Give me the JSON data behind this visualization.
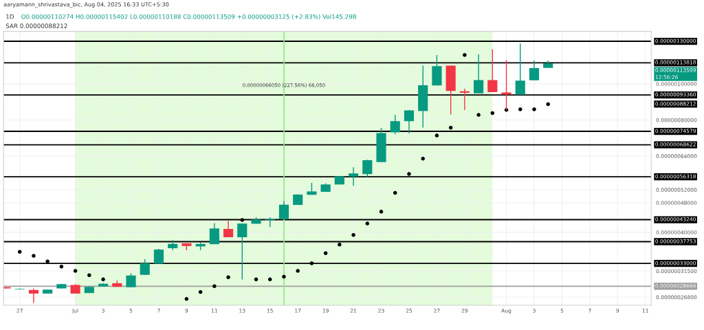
{
  "chart_data": {
    "type": "candlestick",
    "title": "1D",
    "subtitle": "O0.00000110274 H0.00000115402 L0.00000110188 C0.00000113509 +0.00000003125 (+2.83%) Vol145.29B",
    "x": [
      "2025-06-26",
      "2025-06-27",
      "2025-06-28",
      "2025-06-29",
      "2025-06-30",
      "2025-07-01",
      "2025-07-02",
      "2025-07-03",
      "2025-07-04",
      "2025-07-05",
      "2025-07-06",
      "2025-07-07",
      "2025-07-08",
      "2025-07-09",
      "2025-07-10",
      "2025-07-11",
      "2025-07-12",
      "2025-07-13",
      "2025-07-14",
      "2025-07-15",
      "2025-07-16",
      "2025-07-17",
      "2025-07-18",
      "2025-07-19",
      "2025-07-20",
      "2025-07-21",
      "2025-07-22",
      "2025-07-23",
      "2025-07-24",
      "2025-07-25",
      "2025-07-26",
      "2025-07-27",
      "2025-07-28",
      "2025-07-29",
      "2025-07-30",
      "2025-07-31",
      "2025-08-01",
      "2025-08-02",
      "2025-08-03",
      "2025-08-04"
    ],
    "ohlc": [
      [
        2.849e-07,
        2.853e-07,
        2.829e-07,
        2.829e-07
      ],
      [
        2.814e-07,
        2.83e-07,
        2.81e-07,
        2.822e-07
      ],
      [
        2.802e-07,
        2.829e-07,
        2.586e-07,
        2.741e-07
      ],
      [
        2.741e-07,
        2.808e-07,
        2.741e-07,
        2.808e-07
      ],
      [
        2.829e-07,
        2.913e-07,
        2.829e-07,
        2.905e-07
      ],
      [
        2.889e-07,
        2.905e-07,
        2.741e-07,
        2.741e-07
      ],
      [
        2.748e-07,
        2.869e-07,
        2.748e-07,
        2.857e-07
      ],
      [
        2.861e-07,
        2.925e-07,
        2.861e-07,
        2.913e-07
      ],
      [
        2.921e-07,
        2.97e-07,
        2.857e-07,
        2.857e-07
      ],
      [
        2.849e-07,
        3.105e-07,
        2.849e-07,
        3.062e-07
      ],
      [
        3.075e-07,
        3.388e-07,
        3.075e-07,
        3.304e-07
      ],
      [
        3.295e-07,
        3.61e-07,
        3.295e-07,
        3.596e-07
      ],
      [
        3.626e-07,
        3.811e-07,
        3.581e-07,
        3.722e-07
      ],
      [
        3.738e-07,
        3.738e-07,
        3.581e-07,
        3.676e-07
      ],
      [
        3.666e-07,
        3.758e-07,
        3.581e-07,
        3.722e-07
      ],
      [
        3.717e-07,
        4.227e-07,
        3.717e-07,
        4.096e-07
      ],
      [
        4.084e-07,
        4.286e-07,
        3.88e-07,
        3.88e-07
      ],
      [
        3.88e-07,
        4.222e-07,
        2.991e-07,
        4.222e-07
      ],
      [
        4.217e-07,
        4.389e-07,
        4.217e-07,
        4.328e-07
      ],
      [
        4.316e-07,
        4.389e-07,
        4.13e-07,
        4.346e-07
      ],
      [
        4.334e-07,
        4.843e-07,
        4.334e-07,
        4.742e-07
      ],
      [
        4.736e-07,
        5.06e-07,
        4.736e-07,
        5.048e-07
      ],
      [
        5.041e-07,
        5.425e-07,
        5.041e-07,
        5.147e-07
      ],
      [
        5.133e-07,
        5.41e-07,
        5.133e-07,
        5.373e-07
      ],
      [
        5.373e-07,
        5.66e-07,
        5.373e-07,
        5.648e-07
      ],
      [
        5.64e-07,
        5.978e-07,
        5.328e-07,
        5.75e-07
      ],
      [
        5.727e-07,
        6.26e-07,
        5.632e-07,
        6.24e-07
      ],
      [
        6.171e-07,
        7.616e-07,
        6.171e-07,
        7.378e-07
      ],
      [
        7.408e-07,
        8.254e-07,
        7.326e-07,
        7.94e-07
      ],
      [
        7.94e-07,
        8.5e-07,
        7.358e-07,
        8.486e-07
      ],
      [
        8.451e-07,
        1.118e-06,
        7.638e-07,
        9.908e-07
      ],
      [
        9.895e-07,
        1.1948e-06,
        9.895e-07,
        1.1148e-06
      ],
      [
        1.118e-06,
        1.118e-06,
        8.277e-07,
        9.573e-07
      ],
      [
        9.547e-07,
        9.705e-07,
        8.51e-07,
        9.455e-07
      ],
      [
        9.429e-07,
        1.1998e-06,
        9.429e-07,
        1.023e-06
      ],
      [
        1.023e-06,
        1.2369e-06,
        9.494e-07,
        9.494e-07
      ],
      [
        9.482e-07,
        1.1573e-06,
        8.51e-07,
        9.363e-07
      ],
      [
        9.35e-07,
        1.2823e-06,
        9.35e-07,
        1.02e-06
      ],
      [
        1.0215e-06,
        1.155e-06,
        1.0215e-06,
        1.1024e-06
      ],
      [
        1.10274e-06,
        1.15402e-06,
        1.10188e-06,
        1.13509e-06
      ]
    ],
    "colors": [
      "#f23645",
      "#089981",
      "#f23645",
      "#089981",
      "#089981",
      "#f23645",
      "#089981",
      "#089981",
      "#f23645",
      "#089981",
      "#089981",
      "#089981",
      "#089981",
      "#f23645",
      "#089981",
      "#089981",
      "#f23645",
      "#089981",
      "#089981",
      "#089981",
      "#089981",
      "#089981",
      "#089981",
      "#089981",
      "#089981",
      "#089981",
      "#089981",
      "#089981",
      "#089981",
      "#089981",
      "#089981",
      "#089981",
      "#f23645",
      "#f23645",
      "#089981",
      "#f23645",
      "#f23645",
      "#089981",
      "#089981",
      "#089981"
    ],
    "series": [
      {
        "type": "scatter",
        "color": "#000000",
        "values": [
          null,
          3.546e-07,
          3.459e-07,
          3.341e-07,
          3.236e-07,
          3.152e-07,
          3.07e-07,
          2.991e-07,
          null,
          null,
          null,
          null,
          null,
          2.651e-07,
          2.767e-07,
          2.869e-07,
          3.032e-07,
          4.316e-07,
          2.991e-07,
          2.991e-07,
          3.041e-07,
          3.152e-07,
          3.304e-07,
          3.517e-07,
          3.707e-07,
          3.934e-07,
          4.222e-07,
          4.543e-07,
          5.104e-07,
          5.734e-07,
          6.3e-07,
          7.267e-07,
          7.627e-07,
          1.1948e-06,
          8.254e-07,
          8.346e-07,
          8.51e-07,
          8.545e-07,
          8.545e-07,
          8.8212e-07
        ]
      }
    ],
    "marker": "circle",
    "log": "y",
    "ylim": [
      2.55e-07,
      1.382e-06
    ],
    "yticks": [
      {
        "value": 1e-06,
        "label": "0.00000100000"
      },
      {
        "value": 8e-07,
        "label": "0.00000080000"
      },
      {
        "value": 6.4e-07,
        "label": "0.00000064000"
      },
      {
        "value": 5.2e-07,
        "label": "0.00000052000"
      },
      {
        "value": 4.8e-07,
        "label": "0.00000048000"
      },
      {
        "value": 4e-07,
        "label": "0.00000040000"
      },
      {
        "value": 3.15e-07,
        "label": "0.00000031500"
      },
      {
        "value": 2.68e-07,
        "label": "0.00000026800"
      }
    ],
    "xlim": [
      "2025-06-25T20:00",
      "2025-08-11T10:00"
    ],
    "xticks": [
      {
        "value": "2025-06-27",
        "label": "27"
      },
      {
        "value": "2025-07-01",
        "label": "Jul"
      },
      {
        "value": "2025-07-03",
        "label": "3"
      },
      {
        "value": "2025-07-05",
        "label": "5"
      },
      {
        "value": "2025-07-07",
        "label": "7"
      },
      {
        "value": "2025-07-09",
        "label": "9"
      },
      {
        "value": "2025-07-11",
        "label": "11"
      },
      {
        "value": "2025-07-13",
        "label": "13"
      },
      {
        "value": "2025-07-15",
        "label": "15"
      },
      {
        "value": "2025-07-17",
        "label": "17"
      },
      {
        "value": "2025-07-19",
        "label": "19"
      },
      {
        "value": "2025-07-21",
        "label": "21"
      },
      {
        "value": "2025-07-23",
        "label": "23"
      },
      {
        "value": "2025-07-25",
        "label": "25"
      },
      {
        "value": "2025-07-27",
        "label": "27"
      },
      {
        "value": "2025-07-29",
        "label": "29"
      },
      {
        "value": "2025-08-01",
        "label": "Aug"
      },
      {
        "value": "2025-08-03",
        "label": "3"
      },
      {
        "value": "2025-08-05",
        "label": "5"
      },
      {
        "value": "2025-08-07",
        "label": "7"
      },
      {
        "value": "2025-08-09",
        "label": "9"
      },
      {
        "value": "2025-08-11",
        "label": "11"
      }
    ],
    "grid": true,
    "ref_lines": [
      {
        "axis": "y",
        "value": 1.3e-06,
        "label": "0.00000130000",
        "color": "#000000"
      },
      {
        "axis": "y",
        "value": 1.13818e-06,
        "label": "0.00000113818",
        "color": "#000000"
      },
      {
        "axis": "y",
        "value": 9.336e-07,
        "label": "0.00000093360",
        "color": "#000000"
      },
      {
        "axis": "y",
        "value": 7.4579e-07,
        "label": "0.00000074579",
        "color": "#000000"
      },
      {
        "axis": "y",
        "value": 6.8622e-07,
        "label": "0.00000068622",
        "color": "#000000"
      },
      {
        "axis": "y",
        "value": 5.6318e-07,
        "label": "0.00000056318",
        "color": "#000000"
      },
      {
        "axis": "y",
        "value": 4.324e-07,
        "label": "0.00000043240",
        "color": "#000000"
      },
      {
        "axis": "y",
        "value": 3.7753e-07,
        "label": "0.00000037753",
        "color": "#000000"
      },
      {
        "axis": "y",
        "value": 3.3e-07,
        "label": "0.00000033000",
        "color": "#000000"
      },
      {
        "axis": "y",
        "value": 2.8666e-07,
        "label": "0.00000028666",
        "color": "#9e9e9e"
      },
      {
        "axis": "x",
        "value": "2025-07-16",
        "color": "#8ee88e"
      }
    ],
    "bands": [
      {
        "axis": "x",
        "from": "2025-07-01",
        "to": "2025-07-31",
        "color": "#e4fbdc"
      }
    ],
    "annotations": [
      "aaryamann_shrivastava_bic, Aug 04, 2025 16:33 UTC+5:30",
      "SAR 0.00000088212",
      "0.00000113509",
      "12:56:26",
      "0.00000088212",
      {
        "text": "0.00000066050 (227.56%) 66,050",
        "x": "2025-07-16",
        "y": 9.75e-07
      }
    ]
  }
}
